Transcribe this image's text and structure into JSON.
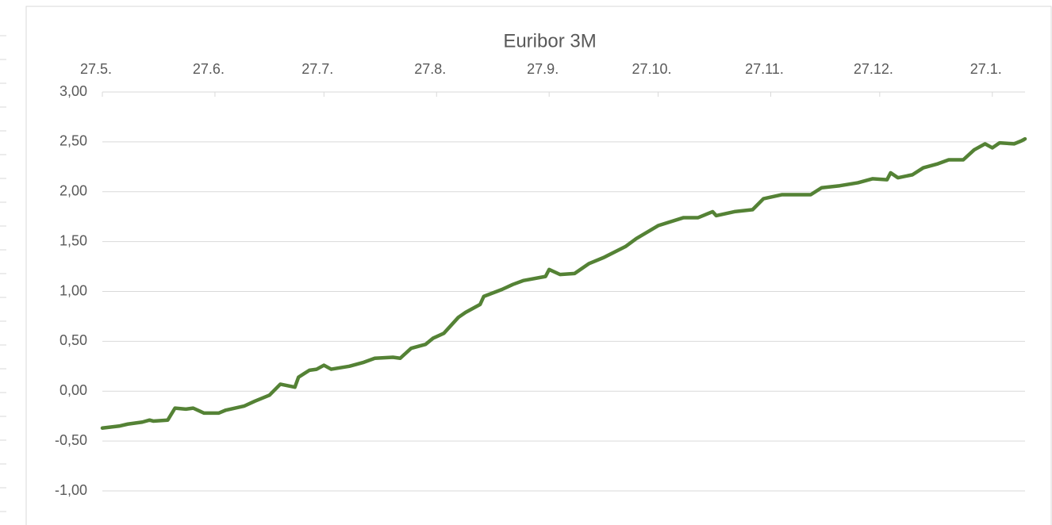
{
  "chart_data": {
    "type": "line",
    "title": "Euribor 3M",
    "x": [
      0,
      4.6,
      7,
      11,
      13,
      14,
      18,
      20,
      23,
      25,
      28,
      32,
      34,
      39,
      42,
      46,
      49,
      53,
      54,
      57,
      59,
      61,
      63,
      68,
      72,
      75,
      80,
      82,
      85,
      89,
      91,
      94,
      98,
      100,
      104,
      105,
      110,
      113,
      116,
      122,
      123,
      126,
      130,
      134,
      138,
      144,
      147,
      153,
      160,
      164,
      168,
      169,
      174,
      179,
      182,
      187,
      195,
      198,
      203,
      208,
      212,
      216,
      217,
      219,
      223,
      226,
      230,
      233,
      237,
      240,
      243,
      245,
      247,
      251,
      253,
      254
    ],
    "series": [
      {
        "name": "Euribor 3M",
        "color": "#548235",
        "values": [
          -0.37,
          -0.35,
          -0.33,
          -0.31,
          -0.29,
          -0.3,
          -0.29,
          -0.17,
          -0.18,
          -0.17,
          -0.22,
          -0.22,
          -0.19,
          -0.15,
          -0.1,
          -0.04,
          0.07,
          0.04,
          0.14,
          0.21,
          0.22,
          0.26,
          0.22,
          0.25,
          0.29,
          0.33,
          0.34,
          0.33,
          0.43,
          0.47,
          0.53,
          0.58,
          0.74,
          0.79,
          0.87,
          0.95,
          1.02,
          1.07,
          1.11,
          1.15,
          1.22,
          1.17,
          1.18,
          1.28,
          1.34,
          1.45,
          1.53,
          1.66,
          1.74,
          1.74,
          1.8,
          1.76,
          1.8,
          1.82,
          1.93,
          1.97,
          1.97,
          2.04,
          2.06,
          2.09,
          2.13,
          2.12,
          2.19,
          2.14,
          2.17,
          2.24,
          2.28,
          2.32,
          2.32,
          2.42,
          2.48,
          2.44,
          2.49,
          2.48,
          2.51,
          2.53
        ]
      }
    ],
    "xlim": [
      0,
      254
    ],
    "xticks": [
      {
        "value": 0,
        "label": "27.5."
      },
      {
        "value": 31,
        "label": "27.6."
      },
      {
        "value": 61,
        "label": "27.7."
      },
      {
        "value": 92,
        "label": "27.8."
      },
      {
        "value": 123,
        "label": "27.9."
      },
      {
        "value": 153,
        "label": "27.10."
      },
      {
        "value": 184,
        "label": "27.11."
      },
      {
        "value": 214,
        "label": "27.12."
      },
      {
        "value": 245,
        "label": "27.1."
      }
    ],
    "ylim": [
      -1,
      3
    ],
    "yticks": [
      {
        "value": -1,
        "label": "-1,00"
      },
      {
        "value": -0.5,
        "label": "-0,50"
      },
      {
        "value": 0,
        "label": "0,00"
      },
      {
        "value": 0.5,
        "label": "0,50"
      },
      {
        "value": 1,
        "label": "1,00"
      },
      {
        "value": 1.5,
        "label": "1,50"
      },
      {
        "value": 2,
        "label": "2,00"
      },
      {
        "value": 2.5,
        "label": "2,50"
      },
      {
        "value": 3,
        "label": "3,00"
      }
    ],
    "grid": true
  }
}
